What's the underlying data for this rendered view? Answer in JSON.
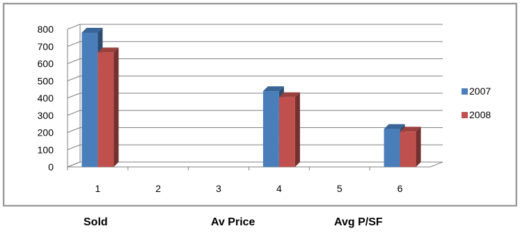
{
  "chart_data": {
    "type": "bar",
    "categories": [
      "1",
      "2",
      "3",
      "4",
      "5",
      "6"
    ],
    "series": [
      {
        "name": "2007",
        "color": "#4a7ebb",
        "values": [
          780,
          null,
          null,
          440,
          null,
          220
        ]
      },
      {
        "name": "2008",
        "color": "#c0504d",
        "values": [
          665,
          null,
          null,
          405,
          null,
          205
        ]
      }
    ],
    "ylim": [
      0,
      800
    ],
    "yticks": [
      0,
      100,
      200,
      300,
      400,
      500,
      600,
      700,
      800
    ],
    "grid": true,
    "legend_position": "right",
    "three_d": true
  },
  "bottom_labels": {
    "sold": "Sold",
    "av_price": "Av Price",
    "avg_psf": "Avg P/SF"
  }
}
